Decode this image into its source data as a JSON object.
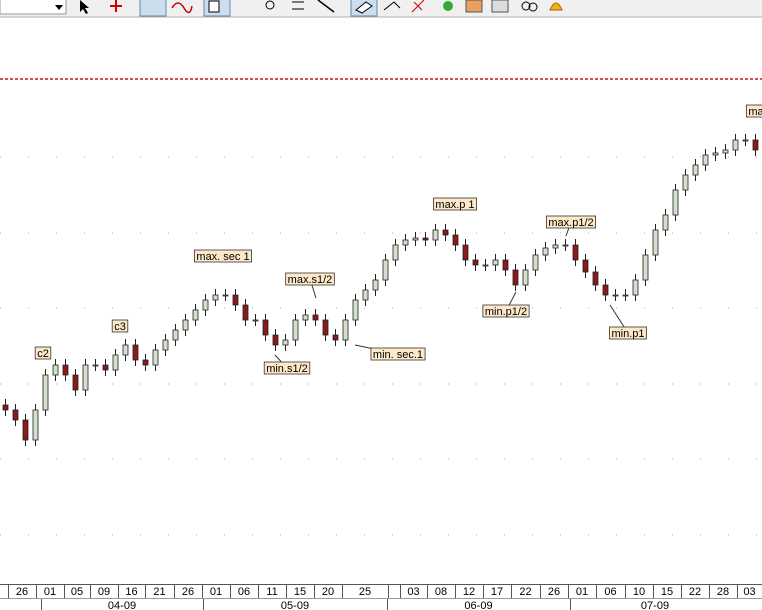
{
  "chart_data": {
    "type": "candlestick",
    "open": [
      195,
      190,
      180,
      160,
      190,
      225,
      235,
      225,
      210,
      235,
      235,
      230,
      245,
      255,
      240,
      235,
      250,
      260,
      270,
      280,
      290,
      300,
      305,
      305,
      295,
      280,
      280,
      265,
      255,
      260,
      280,
      285,
      280,
      265,
      260,
      280,
      300,
      310,
      320,
      340,
      355,
      360,
      362,
      360,
      370,
      365,
      355,
      340,
      335,
      335,
      340,
      330,
      315,
      330,
      345,
      352,
      355,
      355,
      340,
      328,
      315,
      305,
      305,
      305,
      320,
      345,
      370,
      385,
      410,
      425,
      435,
      445,
      447,
      450,
      460,
      460
    ],
    "high": [
      201,
      196,
      186,
      196,
      231,
      241,
      241,
      231,
      241,
      241,
      241,
      251,
      261,
      261,
      246,
      256,
      266,
      276,
      286,
      296,
      306,
      311,
      311,
      311,
      301,
      286,
      286,
      271,
      266,
      286,
      291,
      291,
      286,
      271,
      286,
      306,
      316,
      326,
      346,
      361,
      366,
      368,
      368,
      376,
      376,
      371,
      361,
      346,
      341,
      346,
      346,
      336,
      336,
      351,
      358,
      361,
      361,
      361,
      346,
      334,
      321,
      311,
      311,
      326,
      351,
      376,
      391,
      416,
      431,
      441,
      451,
      453,
      456,
      466,
      466,
      466
    ],
    "low": [
      184,
      174,
      154,
      154,
      184,
      219,
      219,
      204,
      204,
      229,
      224,
      224,
      239,
      234,
      229,
      229,
      244,
      254,
      264,
      274,
      284,
      294,
      299,
      289,
      274,
      274,
      259,
      249,
      249,
      254,
      274,
      274,
      259,
      254,
      254,
      274,
      294,
      304,
      314,
      334,
      349,
      354,
      354,
      354,
      359,
      349,
      334,
      329,
      329,
      329,
      324,
      309,
      309,
      324,
      339,
      346,
      349,
      334,
      322,
      309,
      299,
      299,
      299,
      299,
      314,
      339,
      364,
      379,
      404,
      419,
      429,
      439,
      441,
      444,
      454,
      444
    ],
    "close": [
      190,
      180,
      160,
      190,
      225,
      235,
      225,
      210,
      235,
      235,
      230,
      245,
      255,
      240,
      235,
      250,
      260,
      270,
      280,
      290,
      300,
      305,
      305,
      295,
      280,
      280,
      265,
      255,
      260,
      280,
      285,
      280,
      265,
      260,
      280,
      300,
      310,
      320,
      340,
      355,
      360,
      362,
      360,
      370,
      365,
      355,
      340,
      335,
      335,
      340,
      330,
      315,
      330,
      345,
      352,
      355,
      355,
      340,
      328,
      315,
      305,
      305,
      305,
      320,
      345,
      370,
      385,
      410,
      425,
      435,
      445,
      447,
      450,
      460,
      460,
      450
    ],
    "up_color": "#d4e0cc",
    "down_color": "#8b1a1a",
    "ylim": [
      20,
      580
    ],
    "gridlines": [
      443,
      367,
      292,
      216,
      141,
      65
    ],
    "hline": {
      "value": 521,
      "color": "#d01010"
    },
    "annotations": [
      "c2",
      "c3",
      "max. sec 1",
      "max.s1/2",
      "min.s1/2",
      "min. sec.1",
      "max.p 1",
      "max.p1/2",
      "min.p1/2",
      "min.p1",
      "ma"
    ],
    "days": [
      "26",
      "01",
      "05",
      "09",
      "16",
      "21",
      "26",
      "01",
      "06",
      "11",
      "15",
      "20",
      "25",
      null,
      "03",
      "08",
      "12",
      "17",
      "22",
      "26",
      "01",
      "06",
      "10",
      "15",
      "22",
      "28",
      "03"
    ],
    "months": [
      "04-09",
      "05-09",
      "06-09",
      "07-09"
    ]
  }
}
